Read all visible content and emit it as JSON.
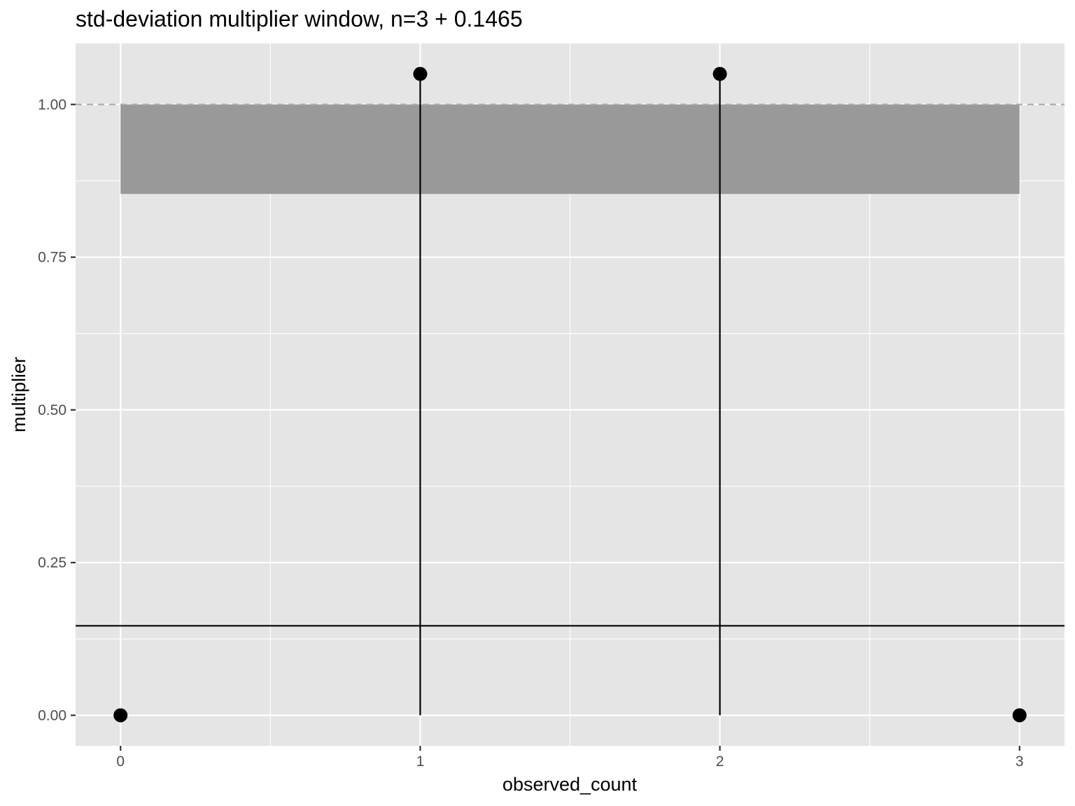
{
  "chart_data": {
    "type": "scatter",
    "title": "std-deviation multiplier window, n=3 + 0.1465",
    "xlabel": "observed_count",
    "ylabel": "multiplier",
    "xlim": [
      -0.15,
      3.15
    ],
    "ylim": [
      -0.05,
      1.1
    ],
    "x_ticks": [
      0,
      1,
      2,
      3
    ],
    "x_tick_labels": [
      "0",
      "1",
      "2",
      "3"
    ],
    "y_ticks": [
      0,
      0.25,
      0.5,
      0.75,
      1.0
    ],
    "y_tick_labels": [
      "0.00",
      "0.25",
      "0.50",
      "0.75",
      "1.00"
    ],
    "grid": true,
    "points": [
      {
        "x": 0,
        "y": 0
      },
      {
        "x": 1,
        "y": 1.05
      },
      {
        "x": 2,
        "y": 1.05
      },
      {
        "x": 3,
        "y": 0
      }
    ],
    "stems": [
      {
        "x": 1,
        "y_from": 0,
        "y_to": 1.05
      },
      {
        "x": 2,
        "y_from": 0,
        "y_to": 1.05
      }
    ],
    "shaded_band": {
      "x_from": 0,
      "x_to": 3,
      "y_from": 0.8535,
      "y_to": 1.0,
      "color": "#999999"
    },
    "hline_solid": {
      "y": 0.1465,
      "color": "#000000"
    },
    "hline_dashed": {
      "y": 1.0,
      "color": "#aaaaaa"
    },
    "colors": {
      "panel": "#e5e5e5",
      "grid": "#ffffff",
      "points": "#000000"
    }
  }
}
